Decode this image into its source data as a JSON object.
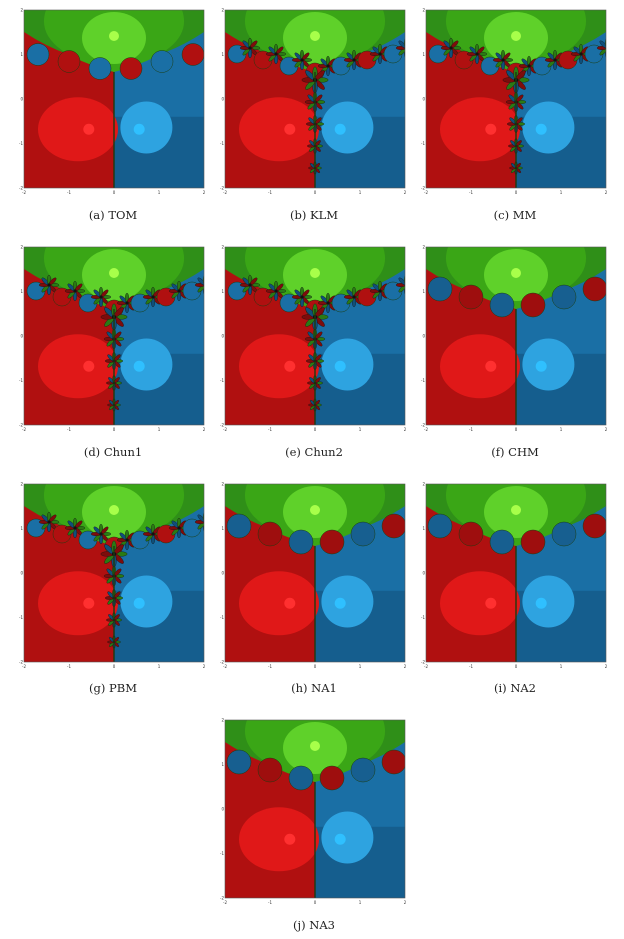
{
  "figure": {
    "panels": [
      {
        "id": "a",
        "label": "(a)",
        "name": "TOM",
        "pattern": "mild"
      },
      {
        "id": "b",
        "label": "(b)",
        "name": "KLM",
        "pattern": "fractal"
      },
      {
        "id": "c",
        "label": "(c)",
        "name": "MM",
        "pattern": "fractal"
      },
      {
        "id": "d",
        "label": "(d)",
        "name": "Chun1",
        "pattern": "fractal"
      },
      {
        "id": "e",
        "label": "(e)",
        "name": "Chun2",
        "pattern": "fractal"
      },
      {
        "id": "f",
        "label": "(f)",
        "name": "CHM",
        "pattern": "smooth"
      },
      {
        "id": "g",
        "label": "(g)",
        "name": "PBM",
        "pattern": "fractal"
      },
      {
        "id": "h",
        "label": "(h)",
        "name": "NA1",
        "pattern": "smooth"
      },
      {
        "id": "i",
        "label": "(i)",
        "name": "NA2",
        "pattern": "smooth"
      },
      {
        "id": "j",
        "label": "(j)",
        "name": "NA3",
        "pattern": "smooth"
      }
    ],
    "axis_ticks": {
      "x": [
        "-2",
        "-1",
        "0",
        "1",
        "2"
      ],
      "y": [
        "2",
        "1",
        "0",
        "-1",
        "-2"
      ]
    },
    "colors": {
      "green_basin": "#3aa616",
      "green_light": "#5fd12a",
      "red_basin": "#b01010",
      "red_light": "#e01818",
      "blue_basin": "#1a6fa5",
      "blue_light": "#2ea3e0",
      "root_green": "#a8ff4a",
      "root_red": "#ff3030",
      "root_blue": "#2fc0ff"
    }
  }
}
